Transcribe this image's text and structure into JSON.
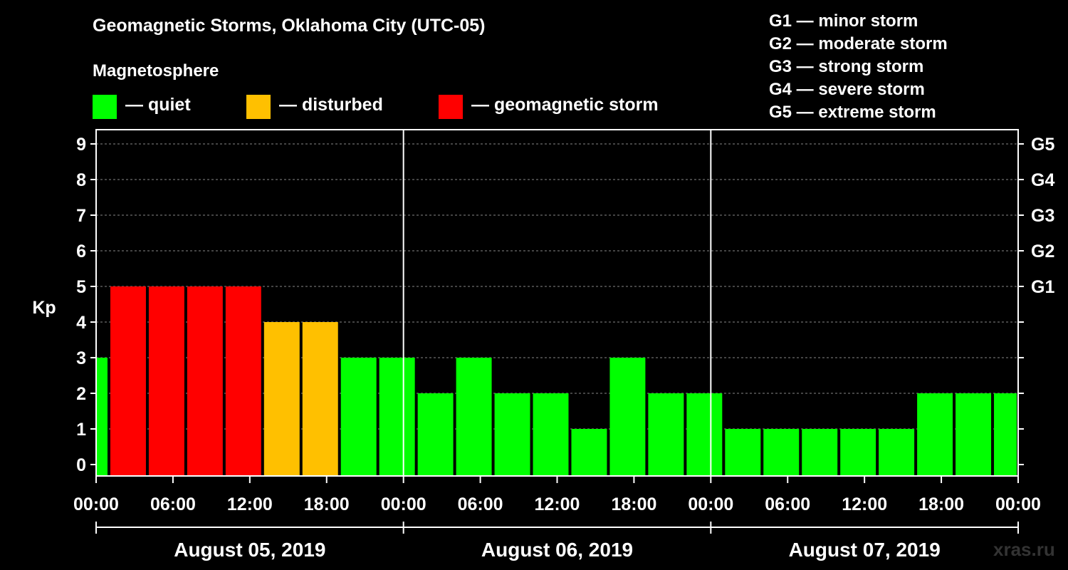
{
  "title": "Geomagnetic Storms, Oklahoma City (UTC-05)",
  "magnetosphere": {
    "label": "Magnetosphere",
    "items": [
      {
        "color": "#00ff00",
        "label": "— quiet"
      },
      {
        "color": "#ffc000",
        "label": "— disturbed"
      },
      {
        "color": "#ff0000",
        "label": "— geomagnetic storm"
      }
    ]
  },
  "g_scale": [
    "G1 — minor storm",
    "G2 — moderate storm",
    "G3 — strong storm",
    "G4 — severe storm",
    "G5 — extreme storm"
  ],
  "watermark": "xras.ru",
  "chart_data": {
    "type": "bar",
    "ylabel": "Kp",
    "ylim": [
      0,
      9
    ],
    "y_ticks": [
      "0",
      "1",
      "2",
      "3",
      "4",
      "5",
      "6",
      "7",
      "8",
      "9"
    ],
    "right_ticks": [
      {
        "kp": 5,
        "label": "G1"
      },
      {
        "kp": 6,
        "label": "G2"
      },
      {
        "kp": 7,
        "label": "G3"
      },
      {
        "kp": 8,
        "label": "G4"
      },
      {
        "kp": 9,
        "label": "G5"
      }
    ],
    "x_ticks": [
      "00:00",
      "06:00",
      "12:00",
      "18:00",
      "00:00",
      "06:00",
      "12:00",
      "18:00",
      "00:00",
      "06:00",
      "12:00",
      "18:00",
      "00:00"
    ],
    "days": [
      "August 05, 2019",
      "August 06, 2019",
      "August 07, 2019"
    ],
    "hours_total": 72,
    "bars": [
      {
        "start": 0,
        "end": 1,
        "kp": 3,
        "color": "#00ff00"
      },
      {
        "start": 1,
        "end": 4,
        "kp": 5,
        "color": "#ff0000"
      },
      {
        "start": 4,
        "end": 7,
        "kp": 5,
        "color": "#ff0000"
      },
      {
        "start": 7,
        "end": 10,
        "kp": 5,
        "color": "#ff0000"
      },
      {
        "start": 10,
        "end": 13,
        "kp": 5,
        "color": "#ff0000"
      },
      {
        "start": 13,
        "end": 16,
        "kp": 4,
        "color": "#ffc000"
      },
      {
        "start": 16,
        "end": 19,
        "kp": 4,
        "color": "#ffc000"
      },
      {
        "start": 19,
        "end": 22,
        "kp": 3,
        "color": "#00ff00"
      },
      {
        "start": 22,
        "end": 25,
        "kp": 3,
        "color": "#00ff00"
      },
      {
        "start": 25,
        "end": 28,
        "kp": 2,
        "color": "#00ff00"
      },
      {
        "start": 28,
        "end": 31,
        "kp": 3,
        "color": "#00ff00"
      },
      {
        "start": 31,
        "end": 34,
        "kp": 2,
        "color": "#00ff00"
      },
      {
        "start": 34,
        "end": 37,
        "kp": 2,
        "color": "#00ff00"
      },
      {
        "start": 37,
        "end": 40,
        "kp": 1,
        "color": "#00ff00"
      },
      {
        "start": 40,
        "end": 43,
        "kp": 3,
        "color": "#00ff00"
      },
      {
        "start": 43,
        "end": 46,
        "kp": 2,
        "color": "#00ff00"
      },
      {
        "start": 46,
        "end": 49,
        "kp": 2,
        "color": "#00ff00"
      },
      {
        "start": 49,
        "end": 52,
        "kp": 1,
        "color": "#00ff00"
      },
      {
        "start": 52,
        "end": 55,
        "kp": 1,
        "color": "#00ff00"
      },
      {
        "start": 55,
        "end": 58,
        "kp": 1,
        "color": "#00ff00"
      },
      {
        "start": 58,
        "end": 61,
        "kp": 1,
        "color": "#00ff00"
      },
      {
        "start": 61,
        "end": 64,
        "kp": 1,
        "color": "#00ff00"
      },
      {
        "start": 64,
        "end": 67,
        "kp": 2,
        "color": "#00ff00"
      },
      {
        "start": 67,
        "end": 70,
        "kp": 2,
        "color": "#00ff00"
      },
      {
        "start": 70,
        "end": 72,
        "kp": 2,
        "color": "#00ff00"
      }
    ]
  }
}
